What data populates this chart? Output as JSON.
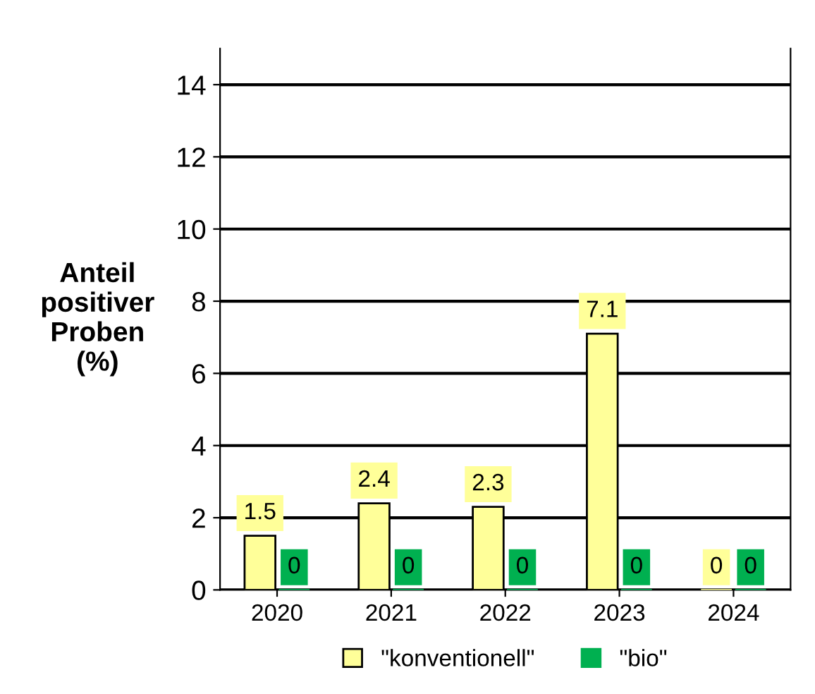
{
  "chart_data": {
    "type": "bar",
    "ylabel": "Anteil\npositiver\nProben\n(%)",
    "categories": [
      "2020",
      "2021",
      "2022",
      "2023",
      "2024"
    ],
    "series": [
      {
        "name": "\"konventionell\"",
        "color": "#ffff99",
        "values": [
          1.5,
          2.4,
          2.3,
          7.1,
          0
        ]
      },
      {
        "name": "\"bio\"",
        "color": "#00b050",
        "values": [
          0,
          0,
          0,
          0,
          0
        ]
      }
    ],
    "ylim": [
      0,
      15
    ],
    "yticks": [
      0,
      2,
      4,
      6,
      8,
      10,
      12,
      14
    ],
    "grid": "y",
    "legend": "bottom",
    "data_labels": true
  }
}
